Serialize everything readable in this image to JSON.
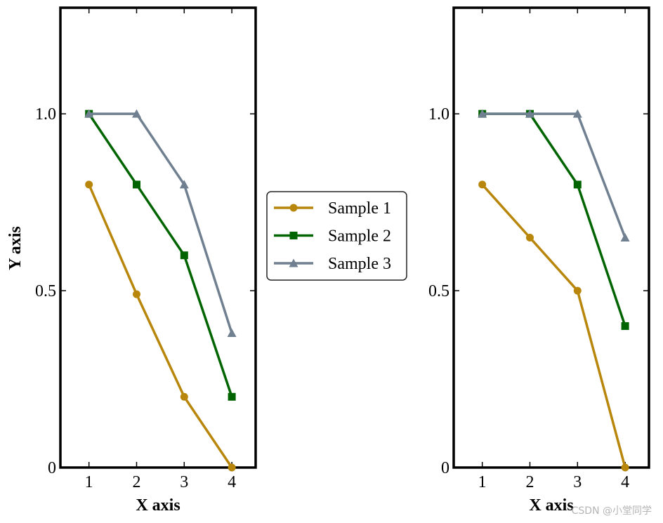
{
  "chart_data": [
    {
      "type": "line",
      "x": [
        1,
        2,
        3,
        4
      ],
      "xticks": [
        "1",
        "2",
        "3",
        "4"
      ],
      "yticks": [
        "0",
        "0.5",
        "1.0"
      ],
      "ytick_values": [
        0,
        0.5,
        1.0
      ],
      "xlim": [
        0.4,
        4.5
      ],
      "ylim": [
        0,
        1.3
      ],
      "xlabel": "X axis",
      "ylabel": "Y axis",
      "series": [
        {
          "name": "Sample 1",
          "marker": "circle",
          "color": "#b8860b",
          "values": [
            0.8,
            0.49,
            0.2,
            0.0
          ]
        },
        {
          "name": "Sample 2",
          "marker": "square",
          "color": "#006400",
          "values": [
            1.0,
            0.8,
            0.6,
            0.2
          ]
        },
        {
          "name": "Sample 3",
          "marker": "triangle",
          "color": "#708090",
          "values": [
            1.0,
            1.0,
            0.8,
            0.38
          ]
        }
      ]
    },
    {
      "type": "line",
      "x": [
        1,
        2,
        3,
        4
      ],
      "xticks": [
        "1",
        "2",
        "3",
        "4"
      ],
      "yticks": [
        "0",
        "0.5",
        "1.0"
      ],
      "ytick_values": [
        0,
        0.5,
        1.0
      ],
      "xlim": [
        0.4,
        4.5
      ],
      "ylim": [
        0,
        1.3
      ],
      "xlabel": "X axis",
      "ylabel": "",
      "series": [
        {
          "name": "Sample 1",
          "marker": "circle",
          "color": "#b8860b",
          "values": [
            0.8,
            0.65,
            0.5,
            0.0
          ]
        },
        {
          "name": "Sample 2",
          "marker": "square",
          "color": "#006400",
          "values": [
            1.0,
            1.0,
            0.8,
            0.4
          ]
        },
        {
          "name": "Sample 3",
          "marker": "triangle",
          "color": "#708090",
          "values": [
            1.0,
            1.0,
            1.0,
            0.65
          ]
        }
      ]
    }
  ],
  "legend": {
    "placement": "center",
    "items": [
      {
        "label": "Sample 1",
        "marker": "circle",
        "color": "#b8860b"
      },
      {
        "label": "Sample 2",
        "marker": "square",
        "color": "#006400"
      },
      {
        "label": "Sample 3",
        "marker": "triangle",
        "color": "#708090"
      }
    ]
  },
  "watermark": "CSDN @小堂同学"
}
